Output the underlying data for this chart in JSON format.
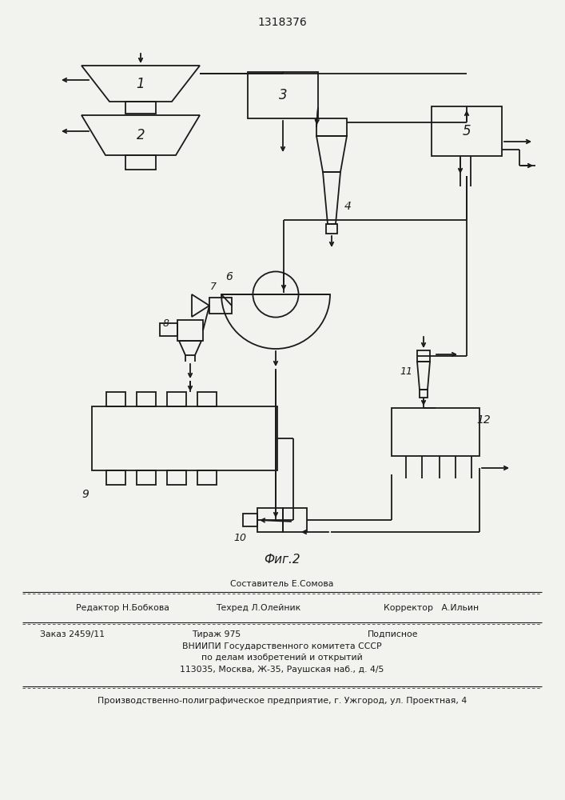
{
  "title": "1318376",
  "fig2_label": "Фиг.2",
  "bg_color": "#f2f2ee",
  "line_color": "#1a1a1a",
  "footer": {
    "line1": "Составитель Е.Сомова",
    "editor": "Редактор Н.Бобкова",
    "techred": "Техред Л.Олейник",
    "corrector": "Корректор   А.Ильин",
    "zakaz": "Заказ 2459/11",
    "tirazh": "Тираж 975",
    "podpisnoe": "Подписное",
    "vniipи1": "ВНИИПИ Государственного комитета СССР",
    "vniipи2": "по делам изобретений и открытий",
    "vniipи3": "113035, Москва, Ж-35, Раушская наб., д. 4/5",
    "bottom": "Производственно-полиграфическое предприятие, г. Ужгород, ул. Проектная, 4"
  }
}
